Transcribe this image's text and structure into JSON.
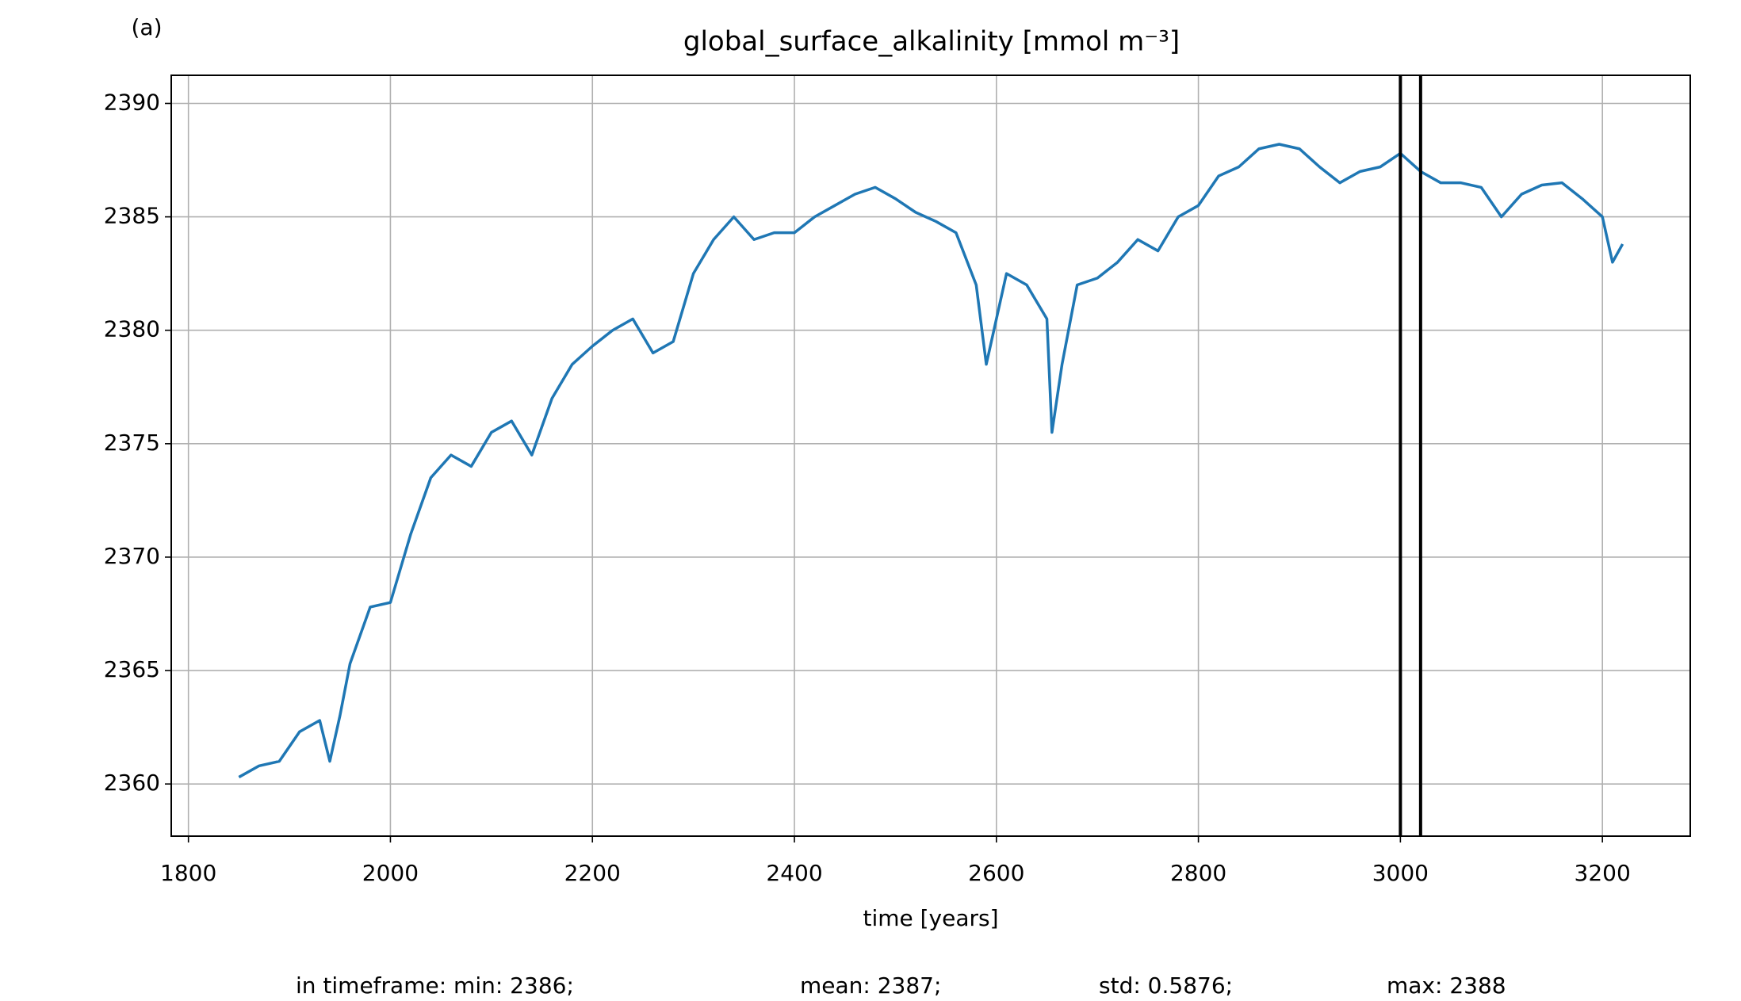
{
  "chart_data": {
    "type": "line",
    "panel_label": "(a)",
    "title": "global_surface_alkalinity [mmol m⁻³]",
    "xlabel": "time [years]",
    "x": [
      1850,
      1870,
      1890,
      1910,
      1930,
      1940,
      1950,
      1960,
      1980,
      2000,
      2020,
      2040,
      2060,
      2080,
      2100,
      2120,
      2140,
      2160,
      2180,
      2200,
      2220,
      2240,
      2260,
      2280,
      2300,
      2320,
      2340,
      2360,
      2380,
      2400,
      2420,
      2440,
      2460,
      2480,
      2500,
      2520,
      2540,
      2560,
      2580,
      2590,
      2600,
      2610,
      2630,
      2650,
      2655,
      2665,
      2680,
      2700,
      2720,
      2740,
      2760,
      2780,
      2800,
      2820,
      2840,
      2860,
      2880,
      2900,
      2920,
      2940,
      2960,
      2980,
      3000,
      3020,
      3040,
      3060,
      3080,
      3100,
      3120,
      3140,
      3160,
      3180,
      3200,
      3210,
      3220
    ],
    "series": [
      {
        "name": "global_surface_alkalinity",
        "color": "#1f77b4",
        "values": [
          2360.3,
          2360.8,
          2361,
          2362.3,
          2362.8,
          2361,
          2363,
          2365.3,
          2367.8,
          2368,
          2371,
          2373.5,
          2374.5,
          2374,
          2375.5,
          2376,
          2374.5,
          2377,
          2378.5,
          2379.3,
          2380,
          2380.5,
          2379,
          2379.5,
          2382.5,
          2384,
          2385,
          2384,
          2384.3,
          2384.3,
          2385,
          2385.5,
          2386,
          2386.3,
          2385.8,
          2385.2,
          2384.8,
          2384.3,
          2382,
          2378.5,
          2380.5,
          2382.5,
          2382,
          2380.5,
          2375.5,
          2378.5,
          2382,
          2382.3,
          2383,
          2384,
          2383.5,
          2385,
          2385.5,
          2386.8,
          2387.2,
          2388,
          2388.2,
          2388,
          2387.2,
          2386.5,
          2387,
          2387.2,
          2387.8,
          2387,
          2386.5,
          2386.5,
          2386.3,
          2385,
          2386,
          2386.4,
          2386.5,
          2385.8,
          2385,
          2383,
          2383.8
        ]
      }
    ],
    "vlines": [
      3000,
      3020
    ],
    "xlim": [
      1783,
      3287
    ],
    "ylim": [
      2357.7,
      2391.24
    ],
    "xticks": [
      1800,
      2000,
      2200,
      2400,
      2600,
      2800,
      3000,
      3200
    ],
    "yticks": [
      2360,
      2365,
      2370,
      2375,
      2380,
      2385,
      2390
    ],
    "grid": true,
    "footer": [
      "in timeframe: min: 2386;",
      "mean: 2387;",
      "std: 0.5876;",
      "max: 2388"
    ]
  }
}
